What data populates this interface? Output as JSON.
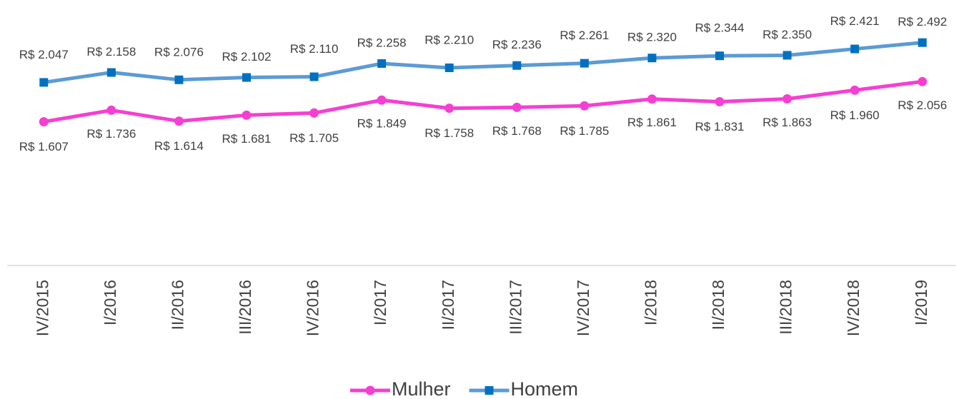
{
  "chart_data": {
    "type": "line",
    "categories": [
      "IV/2015",
      "I/2016",
      "II/2016",
      "III/2016",
      "IV/2016",
      "I/2017",
      "II/2017",
      "III/2017",
      "IV/2017",
      "I/2018",
      "II/2018",
      "III/2018",
      "IV/2018",
      "I/2019"
    ],
    "series": [
      {
        "name": "Mulher",
        "color": "#f53fd2",
        "marker_color": "#f53fd2",
        "marker": "circle",
        "values": [
          1607,
          1736,
          1614,
          1681,
          1705,
          1849,
          1758,
          1768,
          1785,
          1861,
          1831,
          1863,
          1960,
          2056
        ],
        "value_labels": [
          "R$ 1.607",
          "R$ 1.736",
          "R$ 1.614",
          "R$ 1.681",
          "R$ 1.705",
          "R$ 1.849",
          "R$ 1.758",
          "R$ 1.768",
          "R$ 1.785",
          "R$ 1.861",
          "R$ 1.831",
          "R$ 1.863",
          "R$ 1.960",
          "R$ 2.056"
        ]
      },
      {
        "name": "Homem",
        "color": "#5b9bd5",
        "marker_color": "#0070c0",
        "marker": "square",
        "values": [
          2047,
          2158,
          2076,
          2102,
          2110,
          2258,
          2210,
          2236,
          2261,
          2320,
          2344,
          2350,
          2421,
          2492
        ],
        "value_labels": [
          "R$ 2.047",
          "R$ 2.158",
          "R$ 2.076",
          "R$ 2.102",
          "R$ 2.110",
          "R$ 2.258",
          "R$ 2.210",
          "R$ 2.236",
          "R$ 2.261",
          "R$ 2.320",
          "R$ 2.344",
          "R$ 2.350",
          "R$ 2.421",
          "R$ 2.492"
        ]
      }
    ],
    "ylim": [
      0,
      3000
    ],
    "legend": "bottom"
  }
}
